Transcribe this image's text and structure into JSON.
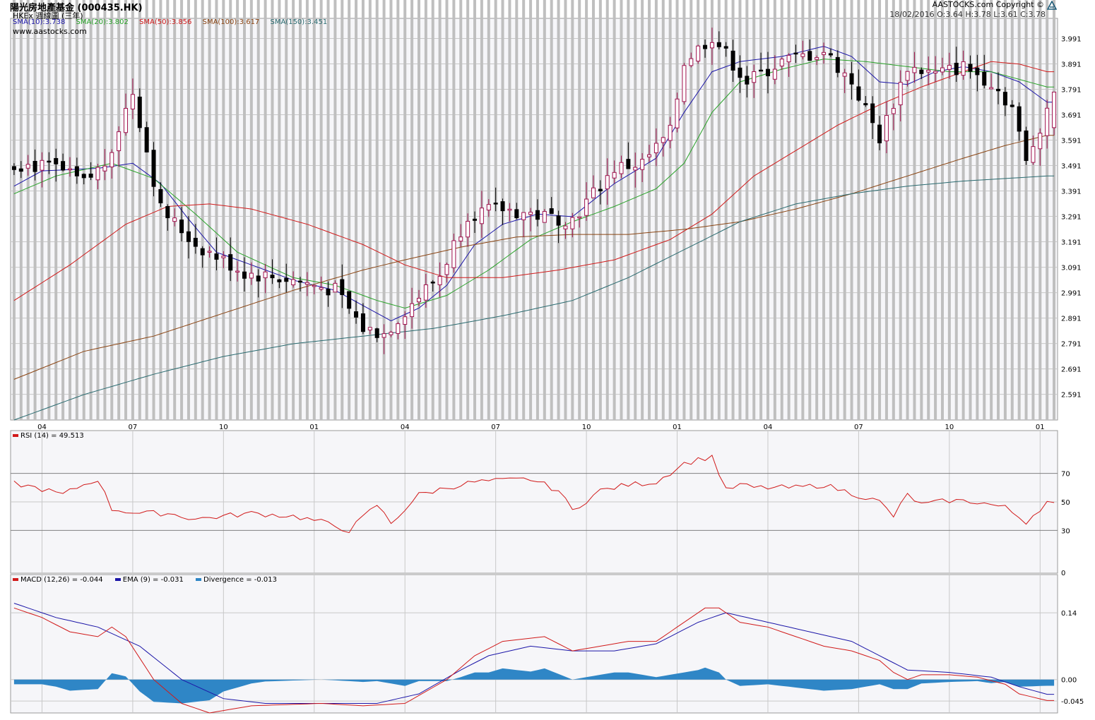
{
  "header": {
    "title": "陽光房地產基金 (000435.HK)",
    "subtitle": "HKEx 週線圖 (三年)",
    "website": "www.aastocks.com",
    "copyright": "AASTOCKS.com Copyright ©",
    "quote": "18/02/2016   O:3.64  H:3.78  L:3.61  C:3.78"
  },
  "colors": {
    "sma10": "#1c16a8",
    "sma20": "#29a329",
    "sma50": "#d11a1a",
    "sma100": "#8b4513",
    "sma150": "#2a6b70",
    "up": "#a0124e",
    "down": "#000000",
    "volume": "#bfbfbf",
    "rsi": "#d11a1a",
    "macd": "#d11a1a",
    "ema": "#1c16a8",
    "divergence": "#2f86c6",
    "grid": "#c8c8c8",
    "plot_bg": "#f6f6f9"
  },
  "chart_data": {
    "type": "candlestick",
    "title": "陽光房地產基金 (000435.HK)",
    "x_tick_labels": [
      "04",
      "07",
      "10",
      "01",
      "04",
      "07",
      "10",
      "01",
      "04",
      "07",
      "10",
      "01"
    ],
    "price": {
      "ylim": [
        2.49,
        4.07
      ],
      "y_ticks": [
        2.591,
        2.691,
        2.791,
        2.891,
        2.991,
        3.091,
        3.191,
        3.291,
        3.391,
        3.491,
        3.591,
        3.691,
        3.791,
        3.891,
        3.991
      ],
      "anchors": [
        [
          0,
          3.5
        ],
        [
          6,
          3.48
        ],
        [
          10,
          3.42
        ],
        [
          13,
          3.5
        ],
        [
          17,
          3.78
        ],
        [
          21,
          3.32
        ],
        [
          26,
          3.18
        ],
        [
          33,
          3.07
        ],
        [
          40,
          3.04
        ],
        [
          46,
          3.0
        ],
        [
          50,
          2.85
        ],
        [
          53,
          2.83
        ],
        [
          57,
          2.95
        ],
        [
          61,
          3.06
        ],
        [
          65,
          3.3
        ],
        [
          70,
          3.32
        ],
        [
          76,
          3.29
        ],
        [
          80,
          3.28
        ],
        [
          86,
          3.48
        ],
        [
          90,
          3.5
        ],
        [
          94,
          3.62
        ],
        [
          96,
          3.9
        ],
        [
          100,
          4.0
        ],
        [
          105,
          3.82
        ],
        [
          110,
          3.9
        ],
        [
          116,
          3.94
        ],
        [
          120,
          3.82
        ],
        [
          124,
          3.6
        ],
        [
          128,
          3.88
        ],
        [
          132,
          3.85
        ],
        [
          136,
          3.88
        ],
        [
          140,
          3.82
        ],
        [
          143,
          3.72
        ],
        [
          145,
          3.5
        ],
        [
          148,
          3.72
        ]
      ],
      "last": {
        "date": "18/02/2016",
        "open": 3.64,
        "high": 3.78,
        "low": 3.61,
        "close": 3.78
      }
    },
    "overlays": [
      {
        "name": "SMA(10)",
        "value": 3.738,
        "anchors": [
          [
            0,
            3.41
          ],
          [
            4,
            3.47
          ],
          [
            12,
            3.48
          ],
          [
            17,
            3.5
          ],
          [
            21,
            3.42
          ],
          [
            25,
            3.28
          ],
          [
            29,
            3.15
          ],
          [
            40,
            3.04
          ],
          [
            46,
            3.0
          ],
          [
            50,
            2.94
          ],
          [
            54,
            2.88
          ],
          [
            58,
            2.93
          ],
          [
            62,
            3.02
          ],
          [
            66,
            3.18
          ],
          [
            70,
            3.26
          ],
          [
            75,
            3.3
          ],
          [
            80,
            3.29
          ],
          [
            86,
            3.42
          ],
          [
            92,
            3.52
          ],
          [
            96,
            3.7
          ],
          [
            100,
            3.86
          ],
          [
            104,
            3.9
          ],
          [
            110,
            3.92
          ],
          [
            116,
            3.96
          ],
          [
            120,
            3.92
          ],
          [
            124,
            3.82
          ],
          [
            128,
            3.81
          ],
          [
            132,
            3.86
          ],
          [
            136,
            3.88
          ],
          [
            140,
            3.86
          ],
          [
            144,
            3.82
          ],
          [
            148,
            3.74
          ]
        ]
      },
      {
        "name": "SMA(20)",
        "value": 3.802,
        "anchors": [
          [
            0,
            3.38
          ],
          [
            6,
            3.45
          ],
          [
            14,
            3.5
          ],
          [
            20,
            3.44
          ],
          [
            26,
            3.3
          ],
          [
            32,
            3.15
          ],
          [
            40,
            3.05
          ],
          [
            46,
            3.02
          ],
          [
            52,
            2.96
          ],
          [
            56,
            2.93
          ],
          [
            62,
            2.98
          ],
          [
            68,
            3.08
          ],
          [
            74,
            3.2
          ],
          [
            80,
            3.27
          ],
          [
            86,
            3.33
          ],
          [
            92,
            3.4
          ],
          [
            96,
            3.5
          ],
          [
            100,
            3.7
          ],
          [
            104,
            3.82
          ],
          [
            110,
            3.87
          ],
          [
            116,
            3.91
          ],
          [
            122,
            3.9
          ],
          [
            128,
            3.88
          ],
          [
            134,
            3.86
          ],
          [
            140,
            3.86
          ],
          [
            148,
            3.8
          ]
        ]
      },
      {
        "name": "SMA(50)",
        "value": 3.856,
        "anchors": [
          [
            0,
            2.96
          ],
          [
            8,
            3.1
          ],
          [
            16,
            3.26
          ],
          [
            22,
            3.33
          ],
          [
            28,
            3.34
          ],
          [
            34,
            3.32
          ],
          [
            42,
            3.26
          ],
          [
            50,
            3.18
          ],
          [
            56,
            3.1
          ],
          [
            62,
            3.05
          ],
          [
            70,
            3.05
          ],
          [
            78,
            3.08
          ],
          [
            86,
            3.12
          ],
          [
            94,
            3.2
          ],
          [
            100,
            3.3
          ],
          [
            106,
            3.45
          ],
          [
            112,
            3.55
          ],
          [
            118,
            3.65
          ],
          [
            124,
            3.73
          ],
          [
            130,
            3.8
          ],
          [
            136,
            3.86
          ],
          [
            140,
            3.9
          ],
          [
            144,
            3.89
          ],
          [
            148,
            3.86
          ]
        ]
      },
      {
        "name": "SMA(100)",
        "value": 3.617,
        "anchors": [
          [
            0,
            2.65
          ],
          [
            10,
            2.76
          ],
          [
            20,
            2.82
          ],
          [
            30,
            2.91
          ],
          [
            40,
            3.0
          ],
          [
            50,
            3.08
          ],
          [
            56,
            3.12
          ],
          [
            64,
            3.17
          ],
          [
            72,
            3.21
          ],
          [
            80,
            3.22
          ],
          [
            88,
            3.22
          ],
          [
            96,
            3.24
          ],
          [
            104,
            3.27
          ],
          [
            112,
            3.32
          ],
          [
            120,
            3.38
          ],
          [
            128,
            3.45
          ],
          [
            136,
            3.52
          ],
          [
            142,
            3.57
          ],
          [
            148,
            3.61
          ]
        ]
      },
      {
        "name": "SMA(150)",
        "value": 3.451,
        "anchors": [
          [
            0,
            2.49
          ],
          [
            10,
            2.59
          ],
          [
            20,
            2.67
          ],
          [
            30,
            2.74
          ],
          [
            40,
            2.79
          ],
          [
            50,
            2.82
          ],
          [
            60,
            2.85
          ],
          [
            70,
            2.9
          ],
          [
            80,
            2.96
          ],
          [
            88,
            3.05
          ],
          [
            96,
            3.16
          ],
          [
            104,
            3.27
          ],
          [
            112,
            3.34
          ],
          [
            120,
            3.38
          ],
          [
            128,
            3.41
          ],
          [
            136,
            3.43
          ],
          [
            142,
            3.44
          ],
          [
            148,
            3.45
          ]
        ]
      }
    ],
    "volume_anchors": [
      [
        0,
        0.22
      ],
      [
        2,
        0.85
      ],
      [
        6,
        0.35
      ],
      [
        10,
        0.45
      ],
      [
        13,
        0.85
      ],
      [
        15,
        0.65
      ],
      [
        18,
        0.3
      ],
      [
        22,
        0.2
      ],
      [
        26,
        0.35
      ],
      [
        30,
        0.55
      ],
      [
        34,
        0.25
      ],
      [
        40,
        0.3
      ],
      [
        46,
        0.2
      ],
      [
        50,
        0.3
      ],
      [
        54,
        0.22
      ],
      [
        58,
        0.3
      ],
      [
        62,
        0.35
      ],
      [
        66,
        0.45
      ],
      [
        70,
        0.45
      ],
      [
        74,
        0.35
      ],
      [
        78,
        0.3
      ],
      [
        82,
        0.45
      ],
      [
        86,
        0.3
      ],
      [
        90,
        0.28
      ],
      [
        94,
        0.22
      ],
      [
        96,
        0.95
      ],
      [
        98,
        0.7
      ],
      [
        102,
        0.4
      ],
      [
        106,
        0.45
      ],
      [
        110,
        0.32
      ],
      [
        114,
        0.45
      ],
      [
        118,
        0.35
      ],
      [
        122,
        0.25
      ],
      [
        126,
        0.3
      ],
      [
        130,
        0.2
      ],
      [
        134,
        0.2
      ],
      [
        138,
        0.18
      ],
      [
        142,
        0.12
      ],
      [
        144,
        0.25
      ],
      [
        148,
        0.18
      ]
    ],
    "rsi": {
      "label": "RSI (14)  = 49.513",
      "value": 49.513,
      "ylim": [
        0,
        100
      ],
      "y_ticks": [
        30,
        50,
        70
      ],
      "y_ticks_extra": [
        0
      ],
      "anchors": [
        [
          0,
          63
        ],
        [
          4,
          59
        ],
        [
          7,
          55
        ],
        [
          9,
          60
        ],
        [
          12,
          66
        ],
        [
          14,
          45
        ],
        [
          18,
          42
        ],
        [
          22,
          42
        ],
        [
          26,
          38
        ],
        [
          30,
          40
        ],
        [
          34,
          42
        ],
        [
          40,
          40
        ],
        [
          44,
          36
        ],
        [
          48,
          30
        ],
        [
          52,
          48
        ],
        [
          54,
          35
        ],
        [
          58,
          55
        ],
        [
          62,
          60
        ],
        [
          66,
          64
        ],
        [
          70,
          65
        ],
        [
          74,
          66
        ],
        [
          78,
          58
        ],
        [
          80,
          44
        ],
        [
          84,
          58
        ],
        [
          88,
          62
        ],
        [
          92,
          64
        ],
        [
          96,
          77
        ],
        [
          100,
          82
        ],
        [
          102,
          58
        ],
        [
          104,
          62
        ],
        [
          106,
          60
        ],
        [
          112,
          60
        ],
        [
          116,
          62
        ],
        [
          120,
          56
        ],
        [
          124,
          50
        ],
        [
          126,
          40
        ],
        [
          128,
          55
        ],
        [
          130,
          48
        ],
        [
          134,
          51
        ],
        [
          138,
          50
        ],
        [
          142,
          46
        ],
        [
          145,
          36
        ],
        [
          148,
          50
        ]
      ]
    },
    "macd": {
      "labels": [
        "MACD (12,26) = -0.044",
        "EMA (9) = -0.031",
        "Divergence = -0.013"
      ],
      "values": {
        "macd": -0.044,
        "ema": -0.031,
        "divergence": -0.013
      },
      "ylim": [
        -0.07,
        0.22
      ],
      "y_ticks": [
        0.14,
        0.0,
        -0.045
      ],
      "macd_anchors": [
        [
          0,
          0.15
        ],
        [
          4,
          0.13
        ],
        [
          8,
          0.1
        ],
        [
          12,
          0.09
        ],
        [
          14,
          0.11
        ],
        [
          16,
          0.09
        ],
        [
          20,
          0.0
        ],
        [
          24,
          -0.05
        ],
        [
          28,
          -0.07
        ],
        [
          34,
          -0.055
        ],
        [
          44,
          -0.05
        ],
        [
          50,
          -0.055
        ],
        [
          56,
          -0.05
        ],
        [
          62,
          0.0
        ],
        [
          66,
          0.05
        ],
        [
          70,
          0.08
        ],
        [
          76,
          0.09
        ],
        [
          80,
          0.06
        ],
        [
          84,
          0.07
        ],
        [
          88,
          0.08
        ],
        [
          92,
          0.08
        ],
        [
          96,
          0.12
        ],
        [
          99,
          0.15
        ],
        [
          101,
          0.15
        ],
        [
          104,
          0.12
        ],
        [
          108,
          0.11
        ],
        [
          112,
          0.09
        ],
        [
          116,
          0.07
        ],
        [
          120,
          0.06
        ],
        [
          124,
          0.04
        ],
        [
          126,
          0.015
        ],
        [
          128,
          0.0
        ],
        [
          130,
          0.01
        ],
        [
          134,
          0.01
        ],
        [
          138,
          0.005
        ],
        [
          142,
          -0.01
        ],
        [
          144,
          -0.03
        ],
        [
          148,
          -0.044
        ]
      ],
      "ema_anchors": [
        [
          0,
          0.16
        ],
        [
          6,
          0.13
        ],
        [
          12,
          0.11
        ],
        [
          18,
          0.07
        ],
        [
          24,
          0.0
        ],
        [
          30,
          -0.04
        ],
        [
          36,
          -0.05
        ],
        [
          44,
          -0.05
        ],
        [
          52,
          -0.05
        ],
        [
          58,
          -0.03
        ],
        [
          64,
          0.02
        ],
        [
          68,
          0.05
        ],
        [
          74,
          0.07
        ],
        [
          80,
          0.06
        ],
        [
          86,
          0.06
        ],
        [
          92,
          0.075
        ],
        [
          98,
          0.12
        ],
        [
          102,
          0.14
        ],
        [
          108,
          0.12
        ],
        [
          114,
          0.1
        ],
        [
          120,
          0.08
        ],
        [
          124,
          0.05
        ],
        [
          128,
          0.02
        ],
        [
          134,
          0.015
        ],
        [
          140,
          0.005
        ],
        [
          144,
          -0.015
        ],
        [
          148,
          -0.031
        ]
      ]
    }
  }
}
